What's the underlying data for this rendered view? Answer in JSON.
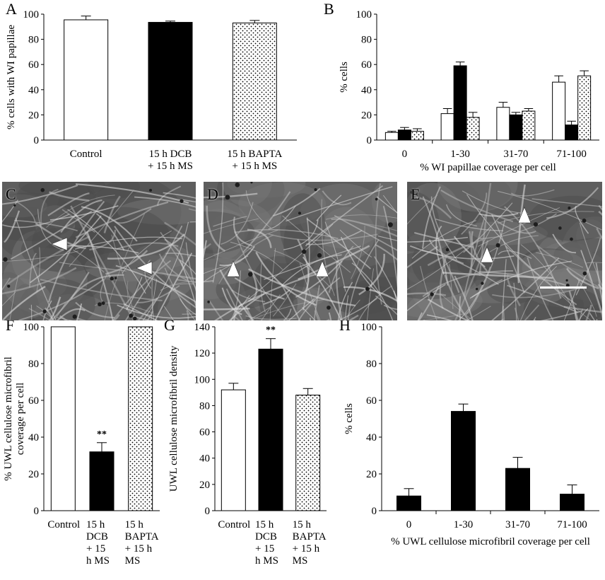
{
  "panels": {
    "A": {
      "letter": "A",
      "ylabel": "% cells with WI papillae",
      "yticks": [
        "0",
        "20",
        "40",
        "60",
        "80",
        "100"
      ],
      "ylim": [
        0,
        100
      ],
      "categories": [
        [
          "Control"
        ],
        [
          "15 h DCB",
          "+ 15 h MS"
        ],
        [
          "15 h BAPTA",
          "+ 15 h MS"
        ]
      ],
      "values": [
        95.5,
        93.5,
        93
      ],
      "errors": [
        3,
        1,
        2
      ],
      "fills": [
        "white",
        "black",
        "dots"
      ]
    },
    "B": {
      "letter": "B",
      "ylabel": "% cells",
      "xlabel": "% WI papillae coverage per cell",
      "yticks": [
        "0",
        "20",
        "40",
        "60",
        "80",
        "100"
      ],
      "ylim": [
        0,
        100
      ],
      "categories": [
        "0",
        "1-30",
        "31-70",
        "71-100"
      ],
      "series": [
        {
          "fill": "white",
          "values": [
            6,
            21,
            26,
            46
          ],
          "errors": [
            1,
            4,
            4,
            5
          ]
        },
        {
          "fill": "black",
          "values": [
            8,
            59,
            20,
            12
          ],
          "errors": [
            2,
            3,
            2,
            3
          ]
        },
        {
          "fill": "dots",
          "values": [
            7,
            18,
            23,
            51
          ],
          "errors": [
            2,
            4,
            2,
            4
          ]
        }
      ]
    },
    "F": {
      "letter": "F",
      "ylabel": [
        "% UWL cellulose microfibril",
        "coverage per cell"
      ],
      "yticks": [
        "0",
        "20",
        "40",
        "60",
        "80",
        "100"
      ],
      "ylim": [
        0,
        100
      ],
      "categories": [
        [
          "Control"
        ],
        [
          "15 h",
          "DCB",
          "+ 15",
          "h MS"
        ],
        [
          "15 h",
          "BAPTA",
          "+ 15 h",
          "MS"
        ]
      ],
      "values": [
        100,
        32,
        100
      ],
      "errors": [
        0,
        5,
        0
      ],
      "fills": [
        "white",
        "black",
        "dots"
      ],
      "annotation": "**"
    },
    "G": {
      "letter": "G",
      "ylabel": "UWL  cellulose microfibril density",
      "yticks": [
        "0",
        "20",
        "40",
        "60",
        "80",
        "100",
        "120",
        "140"
      ],
      "ylim": [
        0,
        140
      ],
      "categories": [
        [
          "Control"
        ],
        [
          "15 h",
          "DCB",
          "+ 15",
          "h MS"
        ],
        [
          "15 h",
          "BAPTA",
          "+ 15 h",
          "MS"
        ]
      ],
      "values": [
        92,
        123,
        88
      ],
      "errors": [
        5,
        8,
        5
      ],
      "fills": [
        "white",
        "black",
        "dots"
      ],
      "annotation": "**"
    },
    "H": {
      "letter": "H",
      "ylabel": "% cells",
      "xlabel": "% UWL cellulose microfibril coverage per cell",
      "yticks": [
        "0",
        "20",
        "40",
        "60",
        "80",
        "100"
      ],
      "ylim": [
        0,
        100
      ],
      "categories": [
        "0",
        "1-30",
        "31-70",
        "71-100"
      ],
      "values": [
        8,
        54,
        23,
        9
      ],
      "errors": [
        4,
        4,
        6,
        5
      ],
      "fills": [
        "black",
        "black",
        "black",
        "black"
      ]
    }
  },
  "micrographs": {
    "C": {
      "letter": "C"
    },
    "D": {
      "letter": "D"
    },
    "E": {
      "letter": "E"
    }
  },
  "chart_data": [
    {
      "type": "bar",
      "ylabel": "% cells with WI papillae",
      "categories": [
        "Control",
        "15 h DCB + 15 h MS",
        "15 h BAPTA + 15 h MS"
      ],
      "values": [
        95.5,
        93.5,
        93
      ],
      "ylim": [
        0,
        100
      ]
    },
    {
      "type": "bar",
      "ylabel": "% cells",
      "xlabel": "% WI papillae coverage per cell",
      "categories": [
        "0",
        "1-30",
        "31-70",
        "71-100"
      ],
      "series": [
        {
          "values": [
            6,
            21,
            26,
            46
          ]
        },
        {
          "values": [
            8,
            59,
            20,
            12
          ]
        },
        {
          "values": [
            7,
            18,
            23,
            51
          ]
        }
      ],
      "ylim": [
        0,
        100
      ]
    },
    {
      "type": "bar",
      "ylabel": "% UWL cellulose microfibril coverage per cell",
      "categories": [
        "Control",
        "15 h DCB + 15 h MS",
        "15 h BAPTA + 15 h MS"
      ],
      "values": [
        100,
        32,
        100
      ],
      "ylim": [
        0,
        100
      ]
    },
    {
      "type": "bar",
      "ylabel": "UWL  cellulose microfibril density",
      "categories": [
        "Control",
        "15 h DCB + 15 h MS",
        "15 h BAPTA + 15 h MS"
      ],
      "values": [
        92,
        123,
        88
      ],
      "ylim": [
        0,
        140
      ]
    },
    {
      "type": "bar",
      "ylabel": "% cells",
      "xlabel": "% UWL cellulose microfibril coverage per cell",
      "categories": [
        "0",
        "1-30",
        "31-70",
        "71-100"
      ],
      "values": [
        8,
        54,
        23,
        9
      ],
      "ylim": [
        0,
        100
      ]
    }
  ]
}
